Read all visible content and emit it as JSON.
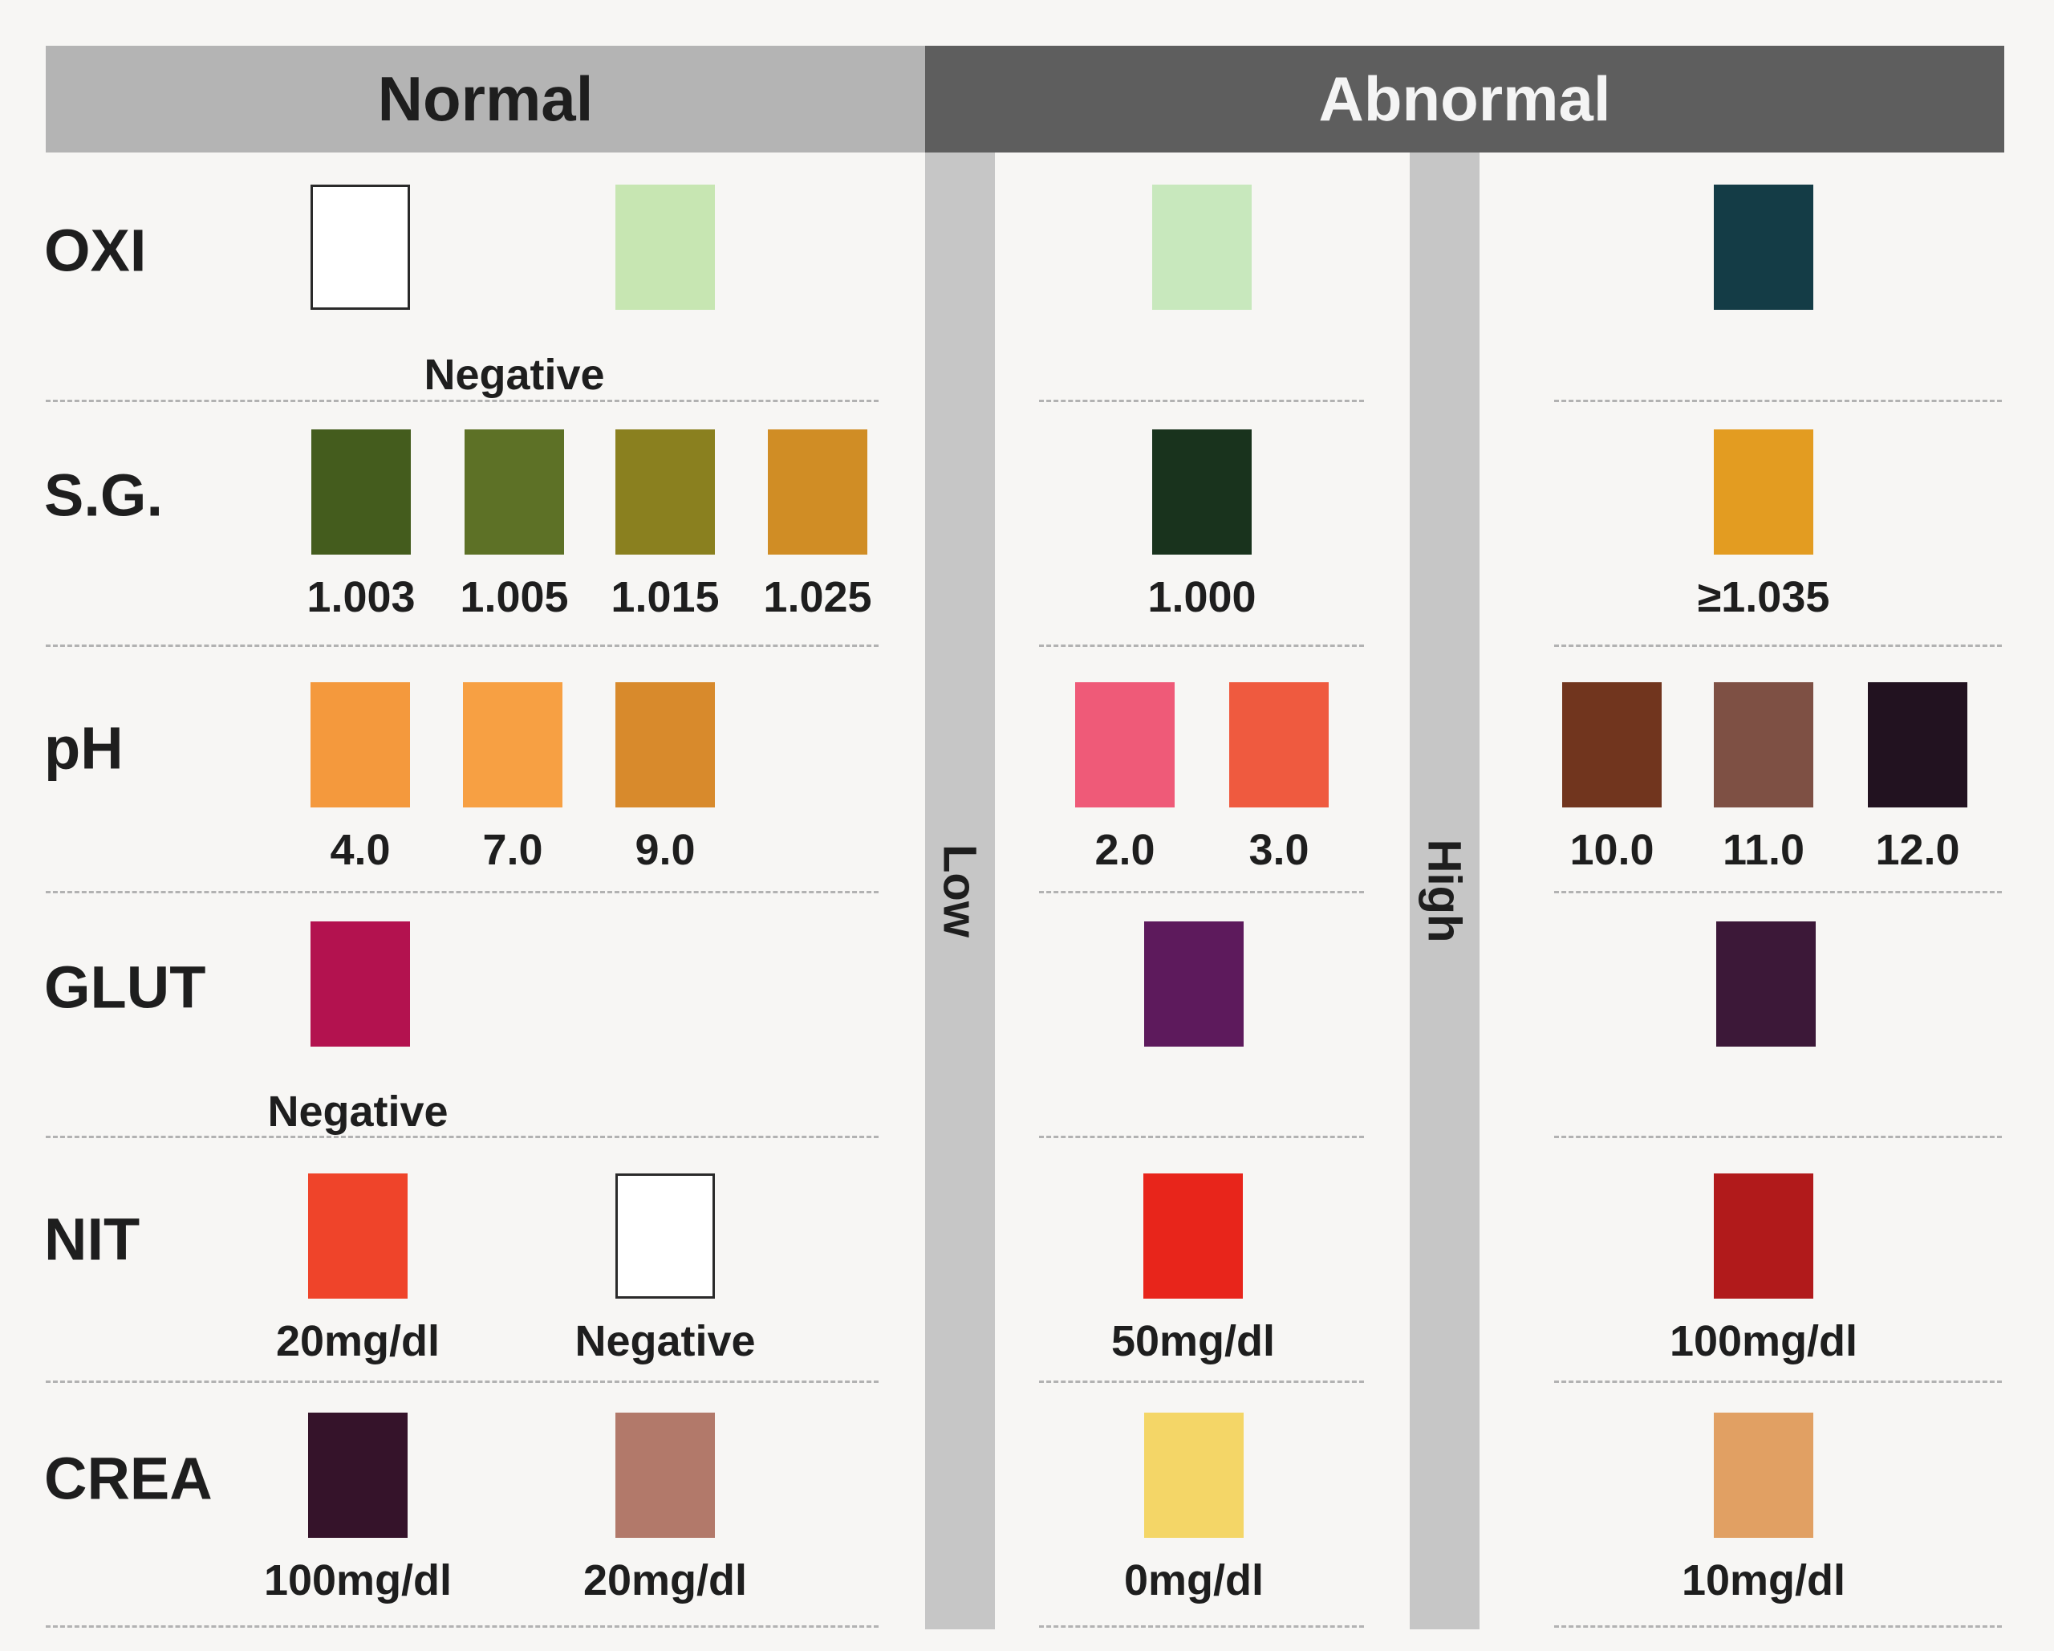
{
  "headers": {
    "normal": "Normal",
    "abnormal": "Abnormal"
  },
  "zones": {
    "low": "Low",
    "high": "High"
  },
  "rows": [
    {
      "label": "OXI",
      "swatches": [
        {
          "zone": "normal",
          "color": "#ffffff",
          "blank": true
        },
        {
          "zone": "normal",
          "color": "#c7e6b2"
        },
        {
          "zone": "low",
          "color": "#c8e8bd"
        },
        {
          "zone": "high",
          "color": "#143c46"
        }
      ],
      "captions": [
        {
          "zone": "normal",
          "text": "Negative"
        }
      ]
    },
    {
      "label": "S.G.",
      "swatches": [
        {
          "zone": "normal",
          "color": "#445c1d",
          "caption": "1.003"
        },
        {
          "zone": "normal",
          "color": "#5d7126",
          "caption": "1.005"
        },
        {
          "zone": "normal",
          "color": "#8a801f",
          "caption": "1.015"
        },
        {
          "zone": "normal",
          "color": "#d08d25",
          "caption": "1.025"
        },
        {
          "zone": "low",
          "color": "#19331d",
          "caption": "1.000"
        },
        {
          "zone": "high",
          "color": "#e39c21",
          "caption": "≥1.035"
        }
      ]
    },
    {
      "label": "pH",
      "swatches": [
        {
          "zone": "normal",
          "color": "#f4993d",
          "caption": "4.0"
        },
        {
          "zone": "normal",
          "color": "#f7a043",
          "caption": "7.0"
        },
        {
          "zone": "normal",
          "color": "#d88a2c",
          "caption": "9.0"
        },
        {
          "zone": "low",
          "color": "#ef5a78",
          "caption": "2.0"
        },
        {
          "zone": "low",
          "color": "#ef5a3f",
          "caption": "3.0"
        },
        {
          "zone": "high",
          "color": "#71351e",
          "caption": "10.0"
        },
        {
          "zone": "high",
          "color": "#7e5044",
          "caption": "11.0"
        },
        {
          "zone": "high",
          "color": "#221220",
          "caption": "12.0"
        }
      ]
    },
    {
      "label": "GLUT",
      "swatches": [
        {
          "zone": "normal",
          "color": "#b3124f"
        },
        {
          "zone": "low",
          "color": "#5d1a5c"
        },
        {
          "zone": "high",
          "color": "#3c1838"
        }
      ],
      "captions": [
        {
          "zone": "normal",
          "text": "Negative"
        }
      ]
    },
    {
      "label": "NIT",
      "swatches": [
        {
          "zone": "normal",
          "color": "#ef442a",
          "caption": "20mg/dl"
        },
        {
          "zone": "normal",
          "color": "#ffffff",
          "blank": true,
          "caption": "Negative"
        },
        {
          "zone": "low",
          "color": "#e8251b",
          "caption": "50mg/dl"
        },
        {
          "zone": "high",
          "color": "#b11a1b",
          "caption": "100mg/dl"
        }
      ]
    },
    {
      "label": "CREA",
      "swatches": [
        {
          "zone": "normal",
          "color": "#35132a",
          "caption": "100mg/dl"
        },
        {
          "zone": "normal",
          "color": "#b2796a",
          "caption": "20mg/dl"
        },
        {
          "zone": "low",
          "color": "#f4d667",
          "caption": "0mg/dl"
        },
        {
          "zone": "high",
          "color": "#e1a063",
          "caption": "10mg/dl"
        }
      ]
    }
  ]
}
